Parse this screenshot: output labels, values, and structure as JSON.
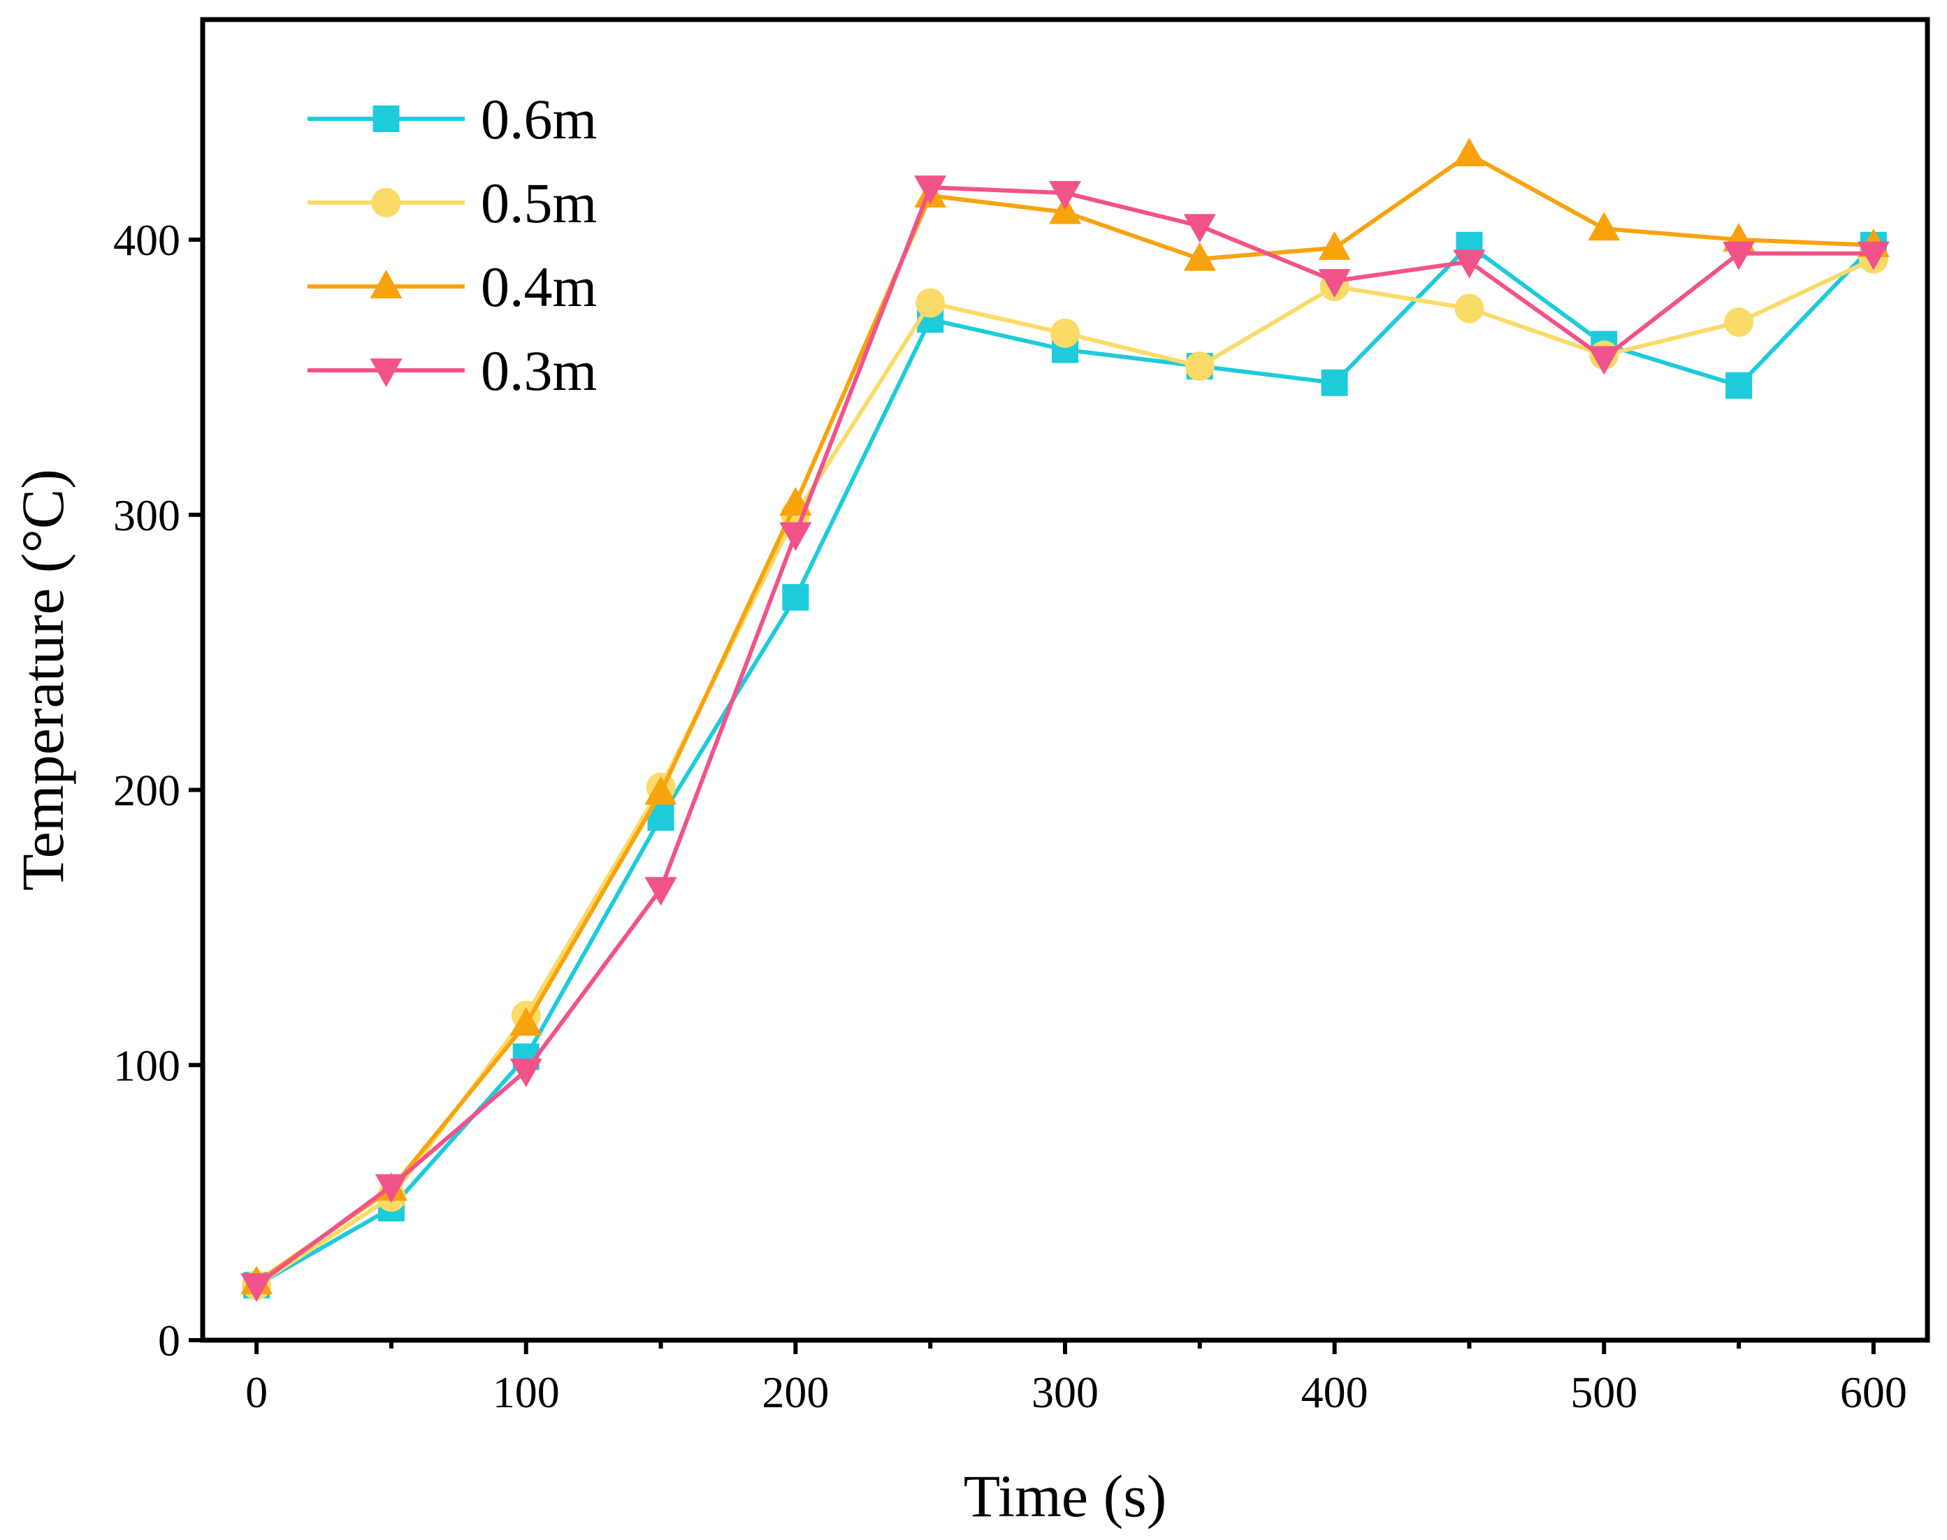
{
  "chart_data": {
    "type": "line",
    "xlabel": "Time (s)",
    "ylabel": "Temperature (°C)",
    "xlim": [
      -20,
      620
    ],
    "ylim": [
      0,
      480
    ],
    "xticks": [
      0,
      100,
      200,
      300,
      400,
      500,
      600
    ],
    "xminor": [
      50,
      150,
      250,
      350,
      450,
      550
    ],
    "yticks": [
      0,
      100,
      200,
      300,
      400
    ],
    "grid": false,
    "legend_position": "top-left",
    "x": [
      0,
      50,
      100,
      150,
      200,
      250,
      300,
      350,
      400,
      450,
      500,
      550,
      600
    ],
    "series": [
      {
        "name": "0.6m",
        "color": "#1ECBDB",
        "marker": "square",
        "values": [
          20,
          48,
          103,
          190,
          270,
          371,
          360,
          354,
          348,
          398,
          362,
          347,
          398
        ]
      },
      {
        "name": "0.5m",
        "color": "#FBDB68",
        "marker": "circle",
        "values": [
          20,
          52,
          118,
          201,
          300,
          377,
          366,
          354,
          383,
          375,
          358,
          370,
          393
        ]
      },
      {
        "name": "0.4m",
        "color": "#F8A30D",
        "marker": "triangle-up",
        "values": [
          21,
          55,
          115,
          199,
          304,
          416,
          410,
          393,
          397,
          431,
          404,
          400,
          398
        ]
      },
      {
        "name": "0.3m",
        "color": "#F2528A",
        "marker": "triangle-down",
        "values": [
          20,
          56,
          98,
          164,
          293,
          419,
          417,
          405,
          385,
          392,
          357,
          395,
          395
        ]
      }
    ]
  }
}
